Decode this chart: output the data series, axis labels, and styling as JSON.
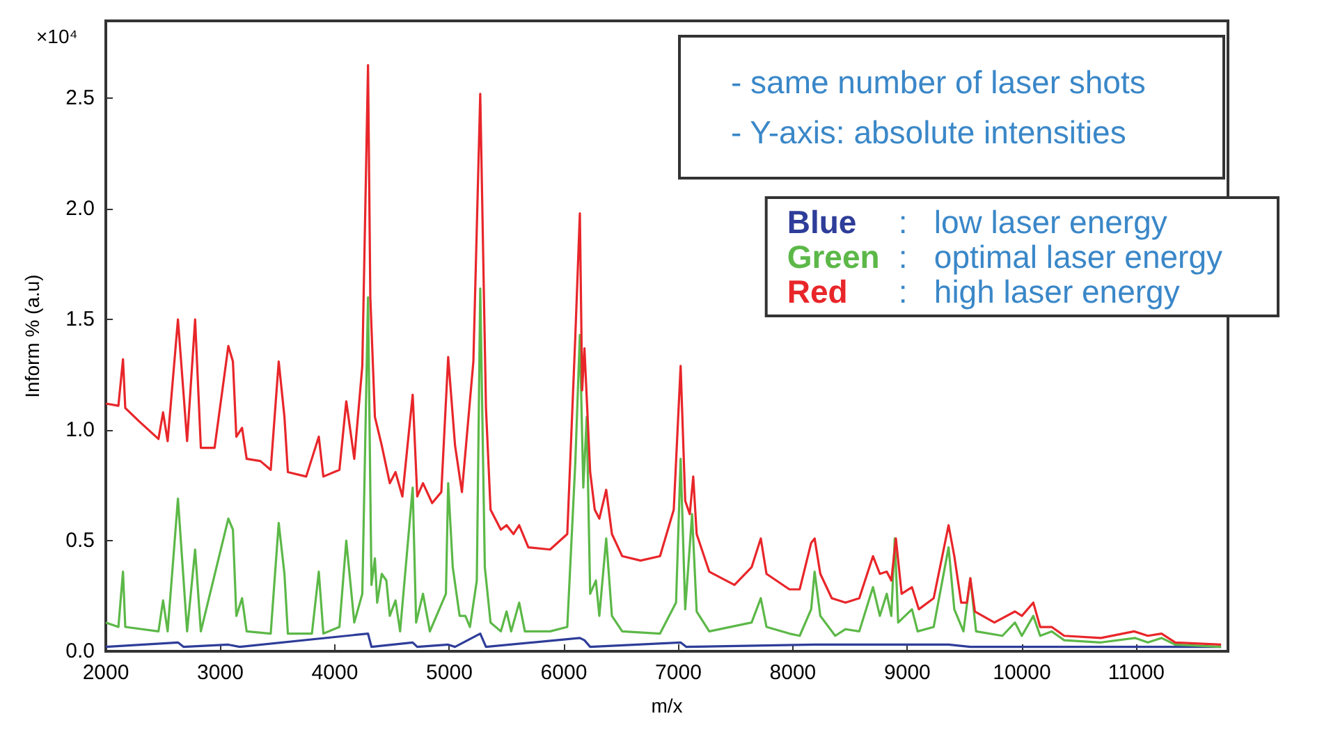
{
  "chart_data": {
    "type": "line",
    "xlabel": "m/x",
    "ylabel": "Inform % (a.u)",
    "annotations": [
      "×10⁴",
      "- same number of laser shots",
      "- Y-axis: absolute intensities"
    ],
    "xlim": [
      2000,
      11800
    ],
    "xticks": [
      2000,
      3000,
      4000,
      5000,
      6000,
      7000,
      8000,
      9000,
      10000,
      11000
    ],
    "ylim": [
      0,
      2.85
    ],
    "yticks": [
      {
        "value": 0,
        "label": "0.0"
      },
      {
        "value": 0.5,
        "label": "0.5"
      },
      {
        "value": 1,
        "label": "1.0"
      },
      {
        "value": 1.5,
        "label": "1.5"
      },
      {
        "value": 2,
        "label": "2.0"
      },
      {
        "value": 2.5,
        "label": "2.5"
      }
    ],
    "grid": false,
    "legend": "top right",
    "marker": "none",
    "line_style": "solid",
    "series": [
      {
        "name": "Blue : low laser energy",
        "color": "#2e3d99",
        "x": [
          2000,
          2630,
          2680,
          3070,
          3170,
          4290,
          4320,
          4680,
          4720,
          4990,
          5050,
          5270,
          5320,
          6140,
          6180,
          6230,
          7020,
          7070,
          8190,
          8900,
          9360,
          9550,
          11740
        ],
        "values": [
          0.02,
          0.04,
          0.02,
          0.03,
          0.02,
          0.08,
          0.02,
          0.04,
          0.02,
          0.03,
          0.02,
          0.08,
          0.02,
          0.06,
          0.05,
          0.02,
          0.04,
          0.02,
          0.03,
          0.03,
          0.03,
          0.02,
          0.02
        ]
      },
      {
        "name": "Green : optimal laser energy",
        "color": "#5cb848",
        "x": [
          2000,
          2110,
          2150,
          2170,
          2460,
          2500,
          2540,
          2630,
          2710,
          2780,
          2830,
          3070,
          3110,
          3140,
          3190,
          3230,
          3440,
          3510,
          3560,
          3590,
          3800,
          3860,
          3900,
          4040,
          4100,
          4170,
          4240,
          4290,
          4320,
          4350,
          4370,
          4410,
          4450,
          4480,
          4530,
          4570,
          4680,
          4710,
          4770,
          4830,
          4970,
          4990,
          5030,
          5090,
          5140,
          5180,
          5240,
          5270,
          5310,
          5360,
          5450,
          5500,
          5540,
          5610,
          5660,
          5880,
          6030,
          6100,
          6140,
          6170,
          6200,
          6230,
          6280,
          6310,
          6370,
          6420,
          6510,
          6840,
          6980,
          7020,
          7060,
          7120,
          7160,
          7270,
          7640,
          7720,
          7770,
          7970,
          8060,
          8160,
          8190,
          8240,
          8370,
          8460,
          8580,
          8700,
          8760,
          8820,
          8860,
          8890,
          8920,
          9040,
          9090,
          9230,
          9360,
          9410,
          9490,
          9550,
          9600,
          9830,
          9940,
          10000,
          10100,
          10160,
          10260,
          10370,
          10690,
          10990,
          11100,
          11220,
          11340,
          11740
        ],
        "values": [
          0.13,
          0.11,
          0.36,
          0.11,
          0.09,
          0.23,
          0.09,
          0.69,
          0.09,
          0.46,
          0.09,
          0.6,
          0.55,
          0.16,
          0.24,
          0.09,
          0.08,
          0.58,
          0.35,
          0.08,
          0.08,
          0.36,
          0.08,
          0.11,
          0.5,
          0.13,
          0.26,
          1.6,
          0.3,
          0.42,
          0.22,
          0.35,
          0.32,
          0.16,
          0.23,
          0.09,
          0.74,
          0.13,
          0.26,
          0.09,
          0.26,
          0.76,
          0.38,
          0.16,
          0.16,
          0.11,
          0.32,
          1.64,
          0.38,
          0.13,
          0.09,
          0.18,
          0.09,
          0.22,
          0.09,
          0.09,
          0.11,
          0.85,
          1.43,
          0.74,
          1.06,
          0.26,
          0.32,
          0.16,
          0.51,
          0.16,
          0.09,
          0.08,
          0.22,
          0.87,
          0.19,
          0.62,
          0.18,
          0.09,
          0.13,
          0.24,
          0.11,
          0.08,
          0.07,
          0.19,
          0.36,
          0.16,
          0.07,
          0.1,
          0.09,
          0.29,
          0.16,
          0.26,
          0.16,
          0.51,
          0.13,
          0.19,
          0.09,
          0.11,
          0.47,
          0.19,
          0.09,
          0.33,
          0.09,
          0.07,
          0.13,
          0.07,
          0.16,
          0.07,
          0.09,
          0.05,
          0.04,
          0.06,
          0.04,
          0.06,
          0.03,
          0.02
        ]
      },
      {
        "name": "Red : high laser energy",
        "color": "#e8262a",
        "x": [
          2000,
          2110,
          2150,
          2170,
          2290,
          2460,
          2500,
          2540,
          2630,
          2710,
          2780,
          2830,
          2950,
          3070,
          3110,
          3140,
          3190,
          3230,
          3350,
          3440,
          3510,
          3560,
          3590,
          3750,
          3860,
          3900,
          4040,
          4100,
          4170,
          4240,
          4290,
          4310,
          4350,
          4410,
          4480,
          4530,
          4590,
          4680,
          4720,
          4770,
          4850,
          4930,
          4990,
          5050,
          5110,
          5210,
          5270,
          5320,
          5360,
          5450,
          5500,
          5560,
          5610,
          5690,
          5880,
          6030,
          6100,
          6140,
          6160,
          6180,
          6230,
          6270,
          6310,
          6370,
          6420,
          6510,
          6670,
          6840,
          6960,
          7020,
          7060,
          7100,
          7130,
          7160,
          7270,
          7490,
          7640,
          7720,
          7770,
          7970,
          8060,
          8160,
          8190,
          8240,
          8340,
          8460,
          8580,
          8700,
          8760,
          8820,
          8860,
          8900,
          8950,
          9040,
          9100,
          9230,
          9360,
          9410,
          9470,
          9520,
          9550,
          9590,
          9760,
          9940,
          10000,
          10100,
          10160,
          10260,
          10370,
          10690,
          10980,
          11100,
          11220,
          11340,
          11740
        ],
        "values": [
          1.12,
          1.11,
          1.32,
          1.1,
          1.04,
          0.96,
          1.08,
          0.95,
          1.5,
          0.95,
          1.5,
          0.92,
          0.92,
          1.38,
          1.31,
          0.97,
          1.01,
          0.87,
          0.86,
          0.82,
          1.31,
          1.06,
          0.81,
          0.79,
          0.97,
          0.79,
          0.82,
          1.13,
          0.87,
          1.29,
          2.65,
          1.6,
          1.06,
          0.93,
          0.76,
          0.81,
          0.7,
          1.16,
          0.7,
          0.76,
          0.67,
          0.72,
          1.33,
          0.93,
          0.72,
          1.31,
          2.52,
          1.1,
          0.64,
          0.55,
          0.57,
          0.53,
          0.57,
          0.47,
          0.46,
          0.53,
          1.42,
          1.98,
          1.18,
          1.37,
          0.81,
          0.64,
          0.6,
          0.73,
          0.53,
          0.43,
          0.41,
          0.43,
          0.64,
          1.29,
          0.68,
          0.62,
          0.79,
          0.53,
          0.36,
          0.3,
          0.38,
          0.51,
          0.35,
          0.28,
          0.28,
          0.49,
          0.51,
          0.35,
          0.24,
          0.22,
          0.24,
          0.43,
          0.35,
          0.36,
          0.32,
          0.51,
          0.26,
          0.29,
          0.19,
          0.24,
          0.57,
          0.43,
          0.22,
          0.22,
          0.33,
          0.18,
          0.13,
          0.18,
          0.16,
          0.22,
          0.11,
          0.11,
          0.07,
          0.06,
          0.09,
          0.07,
          0.08,
          0.04,
          0.03
        ]
      }
    ]
  }
}
